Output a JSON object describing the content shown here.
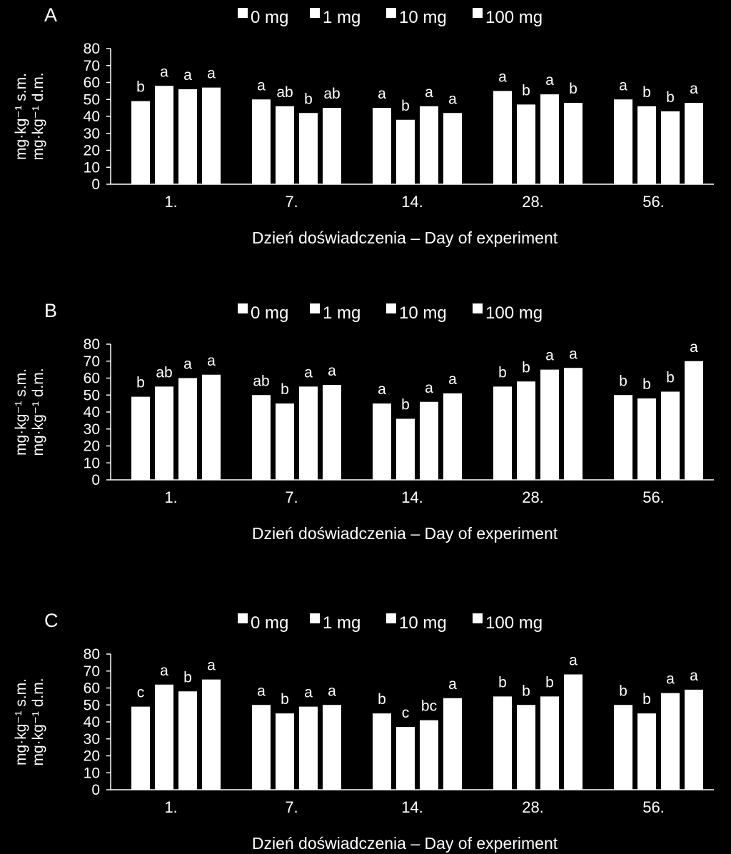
{
  "figure": {
    "background": "#000000",
    "foreground": "#ffffff"
  },
  "chart_data": [
    {
      "panel": "A",
      "type": "bar",
      "categories": [
        "1.",
        "7.",
        "14.",
        "28.",
        "56."
      ],
      "series": [
        {
          "name": "0 mg",
          "values": [
            49,
            50,
            45,
            55,
            50
          ]
        },
        {
          "name": "1 mg",
          "values": [
            58,
            46,
            38,
            47,
            46
          ]
        },
        {
          "name": "10 mg",
          "values": [
            56,
            42,
            46,
            53,
            43
          ]
        },
        {
          "name": "100 mg",
          "values": [
            57,
            45,
            42,
            48,
            48
          ]
        }
      ],
      "annotations": [
        [
          "b",
          "a",
          "a",
          "a"
        ],
        [
          "a",
          "ab",
          "b",
          "ab"
        ],
        [
          "a",
          "b",
          "a",
          "a"
        ],
        [
          "a",
          "b",
          "a",
          "b"
        ],
        [
          "a",
          "b",
          "b",
          "a"
        ]
      ],
      "xlabel": "Dzień doświadczenia – Day of experiment",
      "ylabel_line1": "mg·kg⁻¹ s.m.",
      "ylabel_line2": "mg·kg⁻¹ d.m.",
      "ylim": [
        0,
        80
      ],
      "yticks": [
        0,
        10,
        20,
        30,
        40,
        50,
        60,
        70,
        80
      ],
      "legend_position": "top"
    },
    {
      "panel": "B",
      "type": "bar",
      "categories": [
        "1.",
        "7.",
        "14.",
        "28.",
        "56."
      ],
      "series": [
        {
          "name": "0 mg",
          "values": [
            49,
            50,
            45,
            55,
            50
          ]
        },
        {
          "name": "1 mg",
          "values": [
            55,
            45,
            36,
            58,
            48
          ]
        },
        {
          "name": "10 mg",
          "values": [
            60,
            55,
            46,
            65,
            52
          ]
        },
        {
          "name": "100 mg",
          "values": [
            62,
            56,
            51,
            66,
            70
          ]
        }
      ],
      "annotations": [
        [
          "b",
          "ab",
          "a",
          "a"
        ],
        [
          "ab",
          "b",
          "a",
          "a"
        ],
        [
          "a",
          "b",
          "a",
          "a"
        ],
        [
          "b",
          "b",
          "a",
          "a"
        ],
        [
          "b",
          "b",
          "b",
          "a"
        ]
      ],
      "xlabel": "Dzień doświadczenia – Day of experiment",
      "ylabel_line1": "mg·kg⁻¹ s.m.",
      "ylabel_line2": "mg·kg⁻¹ d.m.",
      "ylim": [
        0,
        80
      ],
      "yticks": [
        0,
        10,
        20,
        30,
        40,
        50,
        60,
        70,
        80
      ],
      "legend_position": "top"
    },
    {
      "panel": "C",
      "type": "bar",
      "categories": [
        "1.",
        "7.",
        "14.",
        "28.",
        "56."
      ],
      "series": [
        {
          "name": "0 mg",
          "values": [
            49,
            50,
            45,
            55,
            50
          ]
        },
        {
          "name": "1 mg",
          "values": [
            62,
            45,
            37,
            50,
            45
          ]
        },
        {
          "name": "10 mg",
          "values": [
            58,
            49,
            41,
            55,
            57
          ]
        },
        {
          "name": "100 mg",
          "values": [
            65,
            50,
            54,
            68,
            59
          ]
        }
      ],
      "annotations": [
        [
          "c",
          "a",
          "b",
          "a"
        ],
        [
          "a",
          "b",
          "a",
          "a"
        ],
        [
          "b",
          "c",
          "bc",
          "a"
        ],
        [
          "b",
          "b",
          "b",
          "a"
        ],
        [
          "b",
          "b",
          "a",
          "a"
        ]
      ],
      "xlabel": "Dzień doświadczenia – Day of experiment",
      "ylabel_line1": "mg·kg⁻¹ s.m.",
      "ylabel_line2": "mg·kg⁻¹ d.m.",
      "ylim": [
        0,
        80
      ],
      "yticks": [
        0,
        10,
        20,
        30,
        40,
        50,
        60,
        70,
        80
      ],
      "legend_position": "top"
    }
  ]
}
